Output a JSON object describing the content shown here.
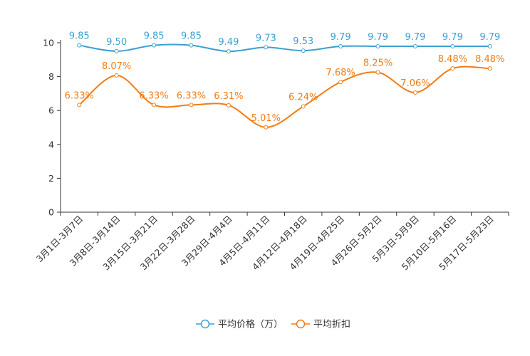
{
  "chart_data": {
    "type": "line",
    "title": "",
    "xlabel": "",
    "ylabel": "",
    "ylim": [
      0,
      10
    ],
    "yticks": [
      0,
      2,
      4,
      6,
      8,
      10
    ],
    "categories": [
      "3月1日-3月7日",
      "3月8日-3月14日",
      "3月15日-3月21日",
      "3月22日-3月28日",
      "3月29日-4月4日",
      "4月5日-4月11日",
      "4月12日-4月18日",
      "4月19日-4月25日",
      "4月26日-5月2日",
      "5月3日-5月9日",
      "5月10日-5月16日",
      "5月17日-5月23日"
    ],
    "series": [
      {
        "name": "平均价格（万）",
        "color": "#3ba0d0",
        "values": [
          9.85,
          9.5,
          9.85,
          9.85,
          9.49,
          9.73,
          9.53,
          9.79,
          9.79,
          9.79,
          9.79,
          9.79
        ],
        "labels": [
          "9.85",
          "9.50",
          "9.85",
          "9.85",
          "9.49",
          "9.73",
          "9.53",
          "9.79",
          "9.79",
          "9.79",
          "9.79",
          "9.79"
        ]
      },
      {
        "name": "平均折扣",
        "color": "#f07c14",
        "values": [
          6.33,
          8.07,
          6.33,
          6.33,
          6.31,
          5.01,
          6.24,
          7.68,
          8.25,
          7.06,
          8.48,
          8.48
        ],
        "labels": [
          "6.33%",
          "8.07%",
          "6.33%",
          "6.33%",
          "6.31%",
          "5.01%",
          "6.24%",
          "7.68%",
          "8.25%",
          "7.06%",
          "8.48%",
          "8.48%"
        ]
      }
    ],
    "legend": "bottom-center",
    "grid": false
  }
}
